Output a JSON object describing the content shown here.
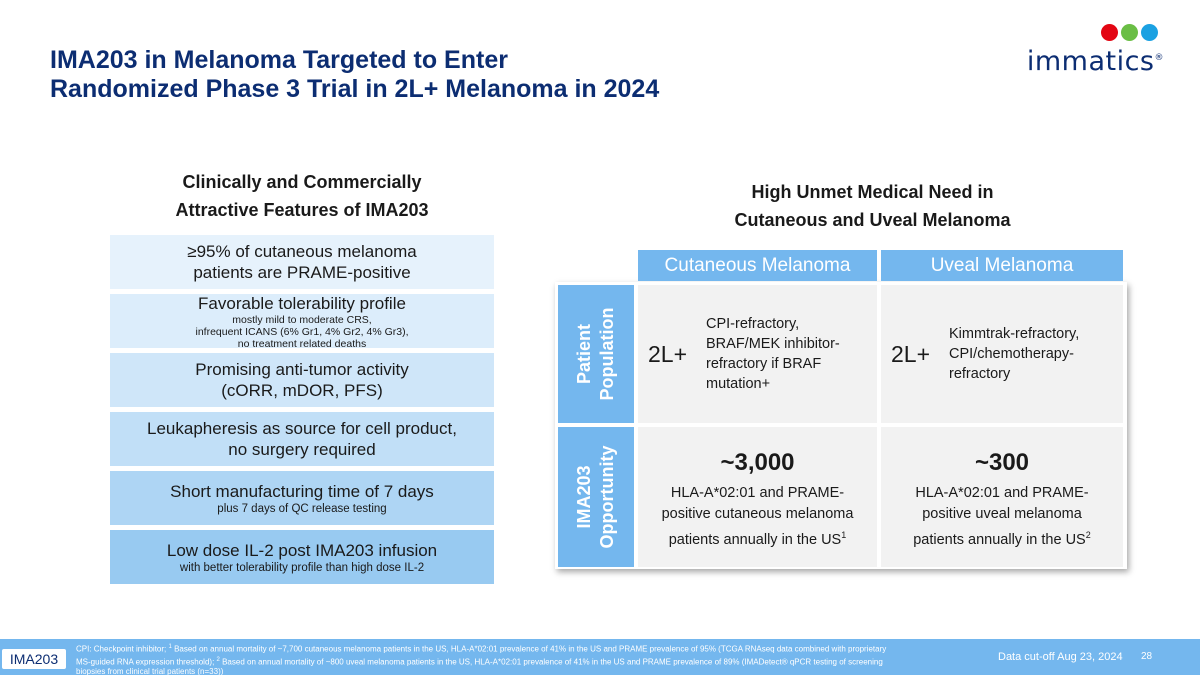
{
  "title": {
    "line1": "IMA203 in Melanoma Targeted to Enter",
    "line2": "Randomized Phase 3 Trial in 2L+ Melanoma in 2024"
  },
  "logo": {
    "text": "immatics",
    "mark": "®",
    "colors": [
      "#e30613",
      "#6abe45",
      "#1ba1e2"
    ]
  },
  "left": {
    "heading_line1": "Clinically and Commercially",
    "heading_line2": "Attractive Features of IMA203",
    "features": [
      {
        "main1": "≥95% of cutaneous melanoma",
        "main2": "patients are PRAME-positive",
        "bg": "#e6f2fc"
      },
      {
        "main1": "Favorable tolerability profile",
        "sub1": "mostly mild to moderate CRS,",
        "sub2": "infrequent ICANS (6% Gr1, 4% Gr2, 4% Gr3),",
        "sub3": "no treatment related deaths",
        "bg": "#dcedfb"
      },
      {
        "main1": "Promising anti-tumor activity",
        "main2": "(cORR, mDOR, PFS)",
        "bg": "#cfe6f9"
      },
      {
        "main1": "Leukapheresis as source for cell product,",
        "main2": "no surgery required",
        "bg": "#c1dff7"
      },
      {
        "main1": "Short manufacturing time of 7 days",
        "sub1": "plus 7 days of QC release testing",
        "bg": "#aed5f4"
      },
      {
        "main1": "Low dose IL-2 post IMA203 infusion",
        "sub1": "with better tolerability profile than high dose IL-2",
        "bg": "#98caf1"
      }
    ]
  },
  "right": {
    "heading_line1": "High Unmet Medical Need in",
    "heading_line2": "Cutaneous and Uveal Melanoma",
    "col_headers": [
      "Cutaneous Melanoma",
      "Uveal Melanoma"
    ],
    "row_labels": {
      "population_line1": "Patient",
      "population_line2": "Population",
      "opportunity_line1": "IMA203",
      "opportunity_line2": "Opportunity"
    },
    "population": [
      {
        "line": "2L+",
        "desc1": "CPI-refractory,",
        "desc2": "BRAF/MEK inhibitor-",
        "desc3": "refractory if BRAF",
        "desc4": "mutation+"
      },
      {
        "line": "2L+",
        "desc1": "Kimmtrak-refractory,",
        "desc2": "CPI/chemotherapy-",
        "desc3": "refractory"
      }
    ],
    "opportunity": [
      {
        "number": "~3,000",
        "desc1": "HLA-A*02:01 and PRAME-",
        "desc2": "positive cutaneous melanoma",
        "desc3": "patients annually in the US",
        "ref": "1"
      },
      {
        "number": "~300",
        "desc1": "HLA-A*02:01 and PRAME-",
        "desc2": "positive uveal melanoma",
        "desc3": "patients annually in the US",
        "ref": "2"
      }
    ]
  },
  "footer": {
    "tag": "IMA203",
    "footnote_a": "CPI: Checkpoint inhibitor; ",
    "ref1": "1",
    "footnote_b": " Based on annual mortality of ~7,700 cutaneous melanoma patients in the US, HLA-A*02:01 prevalence of 41% in the US and PRAME prevalence of 95% (TCGA RNAseq data combined with proprietary MS-guided RNA expression threshold); ",
    "ref2": "2",
    "footnote_c": " Based on annual mortality of ~800 uveal melanoma patients in the US, HLA-A*02:01 prevalence of 41% in the US and PRAME prevalence of 89% (IMADetect® qPCR testing of screening biopsies from clinical trial patients (n=33))",
    "cutoff": "Data cut-off Aug 23, 2024",
    "page": "28"
  }
}
